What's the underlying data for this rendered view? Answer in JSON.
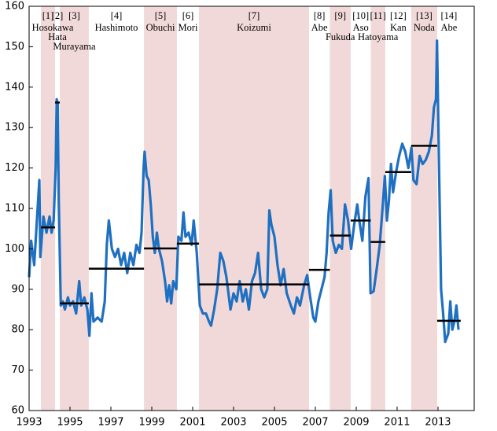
{
  "chart_data": {
    "type": "line",
    "xlim": [
      1993,
      2014.77
    ],
    "ylim": [
      60,
      160
    ],
    "xticks": [
      1993,
      1995,
      1997,
      1999,
      2001,
      2003,
      2005,
      2007,
      2009,
      2011,
      2013
    ],
    "yticks": [
      60,
      70,
      80,
      90,
      100,
      110,
      120,
      130,
      140,
      150,
      160
    ],
    "shade_color": "#f2d9d9",
    "average_color": "#000000",
    "periods": [
      {
        "label": "[1]",
        "name": "Hosokawa",
        "start": 1993.58,
        "end": 1994.27,
        "avg": 105.3,
        "shaded": true
      },
      {
        "label": "[2]",
        "name": "Hata",
        "start": 1994.27,
        "end": 1994.5,
        "avg": 136.2,
        "shaded": false
      },
      {
        "label": "[3]",
        "name": "Murayama",
        "start": 1994.5,
        "end": 1995.92,
        "avg": 86.5,
        "shaded": true
      },
      {
        "label": "[4]",
        "name": "Hashimoto",
        "start": 1995.92,
        "end": 1998.62,
        "avg": 95.1,
        "shaded": false
      },
      {
        "label": "[5]",
        "name": "Obuchi",
        "start": 1998.62,
        "end": 2000.23,
        "avg": 100.1,
        "shaded": true
      },
      {
        "label": "[6]",
        "name": "Mori",
        "start": 2000.23,
        "end": 2001.31,
        "avg": 101.3,
        "shaded": false
      },
      {
        "label": "[7]",
        "name": "Koizumi",
        "start": 2001.31,
        "end": 2006.69,
        "avg": 91.2,
        "shaded": true
      },
      {
        "label": "[8]",
        "name": "Abe",
        "start": 2006.69,
        "end": 2007.71,
        "avg": 94.8,
        "shaded": false
      },
      {
        "label": "[9]",
        "name": "Fukuda",
        "start": 2007.71,
        "end": 2008.73,
        "avg": 103.3,
        "shaded": true
      },
      {
        "label": "[10]",
        "name": "Aso",
        "start": 2008.73,
        "end": 2009.71,
        "avg": 107,
        "shaded": false
      },
      {
        "label": "[11]",
        "name": "Hatoyama",
        "start": 2009.71,
        "end": 2010.42,
        "avg": 101.7,
        "shaded": true
      },
      {
        "label": "[12]",
        "name": "Kan",
        "start": 2010.42,
        "end": 2011.69,
        "avg": 119,
        "shaded": false
      },
      {
        "label": "[13]",
        "name": "Noda",
        "start": 2011.69,
        "end": 2012.96,
        "avg": 125.5,
        "shaded": true
      },
      {
        "label": "[14]",
        "name": "Abe",
        "start": 2012.96,
        "end": 2014.11,
        "avg": 82.2,
        "shaded": false
      }
    ],
    "x": [
      1993.0,
      1993.1,
      1993.25,
      1993.5,
      1993.55,
      1993.7,
      1993.85,
      1994.0,
      1994.1,
      1994.2,
      1994.3,
      1994.35,
      1994.4,
      1994.45,
      1994.55,
      1994.65,
      1994.75,
      1994.9,
      1995.0,
      1995.15,
      1995.3,
      1995.45,
      1995.55,
      1995.7,
      1995.85,
      1995.95,
      1996.05,
      1996.15,
      1996.35,
      1996.55,
      1996.7,
      1996.8,
      1996.9,
      1997.05,
      1997.2,
      1997.35,
      1997.5,
      1997.65,
      1997.8,
      1997.95,
      1998.1,
      1998.25,
      1998.4,
      1998.5,
      1998.6,
      1998.65,
      1998.75,
      1998.85,
      1998.95,
      1999.05,
      1999.15,
      1999.25,
      1999.35,
      1999.5,
      1999.65,
      1999.75,
      1999.85,
      1999.95,
      2000.05,
      2000.2,
      2000.3,
      2000.45,
      2000.55,
      2000.65,
      2000.8,
      2000.95,
      2001.05,
      2001.2,
      2001.35,
      2001.5,
      2001.65,
      2001.8,
      2001.9,
      2002.05,
      2002.2,
      2002.35,
      2002.5,
      2002.65,
      2002.85,
      2003.0,
      2003.15,
      2003.3,
      2003.45,
      2003.6,
      2003.75,
      2003.9,
      2004.05,
      2004.2,
      2004.35,
      2004.5,
      2004.65,
      2004.75,
      2004.85,
      2005.0,
      2005.15,
      2005.3,
      2005.45,
      2005.6,
      2005.8,
      2005.95,
      2006.1,
      2006.25,
      2006.45,
      2006.6,
      2006.75,
      2006.9,
      2007.0,
      2007.15,
      2007.3,
      2007.45,
      2007.55,
      2007.65,
      2007.75,
      2007.85,
      2008.0,
      2008.15,
      2008.3,
      2008.45,
      2008.6,
      2008.75,
      2008.9,
      2009.05,
      2009.15,
      2009.3,
      2009.45,
      2009.6,
      2009.7,
      2009.85,
      2010.0,
      2010.15,
      2010.3,
      2010.4,
      2010.5,
      2010.6,
      2010.7,
      2010.8,
      2010.95,
      2011.1,
      2011.25,
      2011.4,
      2011.55,
      2011.7,
      2011.8,
      2011.95,
      2012.1,
      2012.25,
      2012.4,
      2012.55,
      2012.7,
      2012.8,
      2012.9,
      2012.95,
      2013.05,
      2013.15,
      2013.25,
      2013.35,
      2013.5,
      2013.6,
      2013.7,
      2013.8,
      2013.9,
      2014.0
    ],
    "series": [
      {
        "color": "#1f70c1",
        "values": [
          93,
          102,
          96,
          117,
          98,
          108,
          104,
          108,
          104,
          107,
          120,
          137,
          136,
          112,
          86,
          87,
          85,
          88,
          86,
          87,
          84,
          92,
          86,
          88,
          85,
          78.5,
          89,
          82,
          83,
          82,
          87,
          101,
          107,
          100,
          98,
          100,
          96,
          99,
          94,
          99,
          96,
          101,
          99,
          104,
          120,
          124,
          118,
          117,
          111,
          103,
          99,
          104,
          100,
          97,
          92,
          87,
          91,
          86.5,
          92,
          90,
          103,
          102,
          109,
          103,
          104,
          101,
          107,
          99,
          86,
          84,
          84,
          82,
          81,
          85,
          90,
          99,
          97,
          93,
          85,
          89,
          87,
          92,
          87,
          90,
          85,
          92,
          94,
          99,
          90,
          88,
          90,
          109.5,
          106,
          103,
          96,
          91,
          95,
          89,
          86,
          84,
          88,
          86,
          91,
          93.5,
          88,
          83,
          82,
          87,
          90,
          93,
          99,
          109,
          114.5,
          102,
          99,
          101,
          100,
          111,
          107,
          100,
          106,
          111,
          107,
          102,
          113,
          117.5,
          89,
          89.5,
          95,
          101,
          111,
          118,
          107,
          112,
          121,
          114,
          119,
          123,
          126,
          124,
          120,
          125,
          117,
          116,
          123,
          121,
          122,
          124,
          128,
          135,
          137,
          151.5,
          120,
          90,
          84,
          77,
          79,
          87,
          80,
          82,
          86,
          80
        ]
      }
    ]
  }
}
